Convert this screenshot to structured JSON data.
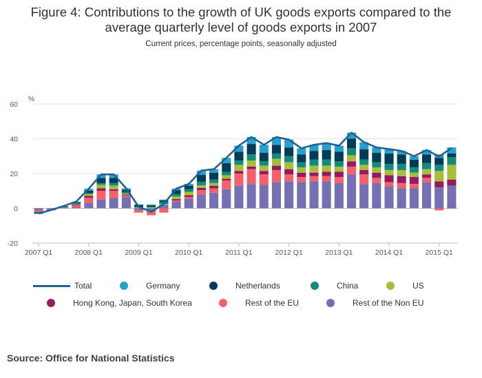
{
  "header": {
    "title_line1": "Figure 4: Contributions to the growth of UK goods exports compared to the",
    "title_line2": "average quarterly level of goods exports in 2007",
    "subtitle": "Current prices, percentage points, seasonally adjusted"
  },
  "source": "Source: Office for National Statistics",
  "chart_data": {
    "type": "bar",
    "stacked": true,
    "y_unit": "%",
    "ylim": [
      -20,
      60
    ],
    "yticks": [
      -20,
      0,
      20,
      40,
      60
    ],
    "x_tick_labels": [
      "2007 Q1",
      "2008 Q1",
      "2009 Q1",
      "2010 Q1",
      "2011 Q1",
      "2012 Q1",
      "2013 Q1",
      "2014 Q1",
      "2015 Q1"
    ],
    "categories": [
      "2007 Q1",
      "2007 Q2",
      "2007 Q3",
      "2007 Q4",
      "2008 Q1",
      "2008 Q2",
      "2008 Q3",
      "2008 Q4",
      "2009 Q1",
      "2009 Q2",
      "2009 Q3",
      "2009 Q4",
      "2010 Q1",
      "2010 Q2",
      "2010 Q3",
      "2010 Q4",
      "2011 Q1",
      "2011 Q2",
      "2011 Q3",
      "2011 Q4",
      "2012 Q1",
      "2012 Q2",
      "2012 Q3",
      "2012 Q4",
      "2013 Q1",
      "2013 Q2",
      "2013 Q3",
      "2013 Q4",
      "2014 Q1",
      "2014 Q2",
      "2014 Q3",
      "2014 Q4",
      "2015 Q1",
      "2015 Q2"
    ],
    "grid": "horizontal",
    "legend_position": "bottom",
    "series": [
      {
        "name": "Rest of the Non EU",
        "color": "#7570b3",
        "values": [
          -1.0,
          -0.5,
          0.3,
          0.6,
          3.0,
          5.0,
          6.0,
          6.5,
          -1.0,
          -2.0,
          2.0,
          4.0,
          5.5,
          8.0,
          9.0,
          11.0,
          13.0,
          14.0,
          13.5,
          15.0,
          15.5,
          15.0,
          15.5,
          15.5,
          14.5,
          19.5,
          14.0,
          14.5,
          12.5,
          11.5,
          11.5,
          15.0,
          12.0,
          13.0
        ]
      },
      {
        "name": "Rest of the EU",
        "color": "#f66068",
        "values": [
          -0.8,
          -0.3,
          0.2,
          1.2,
          3.0,
          5.0,
          4.0,
          1.0,
          -1.5,
          -2.0,
          -2.5,
          0.5,
          1.0,
          2.5,
          2.5,
          5.0,
          7.0,
          8.5,
          6.0,
          7.0,
          4.0,
          3.0,
          3.0,
          3.0,
          3.5,
          4.5,
          5.5,
          3.0,
          2.5,
          3.0,
          2.5,
          2.5,
          -1.2,
          -0.2
        ]
      },
      {
        "name": "Hong Kong, Japan, South Korea",
        "color": "#961a5e",
        "values": [
          -0.2,
          0.0,
          0.1,
          0.4,
          1.2,
          1.5,
          1.0,
          0.5,
          0.0,
          0.0,
          0.0,
          0.8,
          1.0,
          1.2,
          1.5,
          1.0,
          1.5,
          1.5,
          2.0,
          2.5,
          3.0,
          2.5,
          2.0,
          2.5,
          3.0,
          3.0,
          2.5,
          3.0,
          4.0,
          4.0,
          4.0,
          2.0,
          3.5,
          3.5
        ]
      },
      {
        "name": "US",
        "color": "#a8bd3a",
        "values": [
          -0.2,
          0.0,
          0.1,
          0.3,
          1.0,
          2.0,
          2.0,
          0.5,
          0.5,
          0.5,
          0.5,
          1.5,
          2.0,
          1.5,
          1.5,
          2.0,
          3.5,
          3.5,
          3.0,
          4.0,
          4.0,
          3.0,
          4.0,
          3.5,
          3.0,
          3.5,
          3.0,
          3.0,
          3.0,
          3.5,
          2.5,
          3.0,
          6.0,
          8.5
        ]
      },
      {
        "name": "China",
        "color": "#118c7b",
        "values": [
          -0.2,
          0.0,
          0.1,
          0.3,
          0.5,
          1.0,
          1.5,
          1.0,
          0.3,
          0.2,
          1.0,
          1.5,
          1.5,
          2.0,
          2.0,
          2.0,
          2.5,
          3.5,
          2.5,
          3.0,
          3.5,
          3.0,
          3.5,
          3.5,
          3.0,
          4.0,
          3.0,
          3.0,
          3.5,
          3.5,
          3.0,
          3.5,
          3.5,
          4.5
        ]
      },
      {
        "name": "Netherlands",
        "color": "#003c57",
        "values": [
          -0.5,
          -0.2,
          0.3,
          0.6,
          1.5,
          3.0,
          3.0,
          1.0,
          1.0,
          1.0,
          1.0,
          2.0,
          2.0,
          4.0,
          4.0,
          5.0,
          5.0,
          6.0,
          5.0,
          5.0,
          5.0,
          4.5,
          5.0,
          5.5,
          5.5,
          5.5,
          6.0,
          5.5,
          6.0,
          5.5,
          4.5,
          5.0,
          4.0,
          2.0
        ]
      },
      {
        "name": "Germany",
        "color": "#27a0cc",
        "values": [
          -0.4,
          -0.2,
          0.2,
          0.4,
          1.0,
          2.0,
          2.0,
          1.0,
          0.5,
          0.5,
          0.5,
          1.0,
          1.0,
          2.5,
          2.0,
          3.0,
          3.5,
          4.0,
          4.5,
          4.5,
          4.5,
          3.5,
          3.5,
          4.0,
          3.5,
          3.5,
          4.0,
          3.0,
          2.5,
          2.0,
          2.0,
          2.5,
          2.0,
          3.5
        ]
      },
      {
        "name": "Total",
        "color": "#206095",
        "kind": "line",
        "values": [
          -3.0,
          -1.0,
          1.3,
          3.8,
          11.2,
          19.5,
          19.5,
          11.5,
          0.8,
          -2.0,
          2.5,
          11.3,
          14.0,
          21.7,
          22.5,
          29.0,
          36.0,
          41.0,
          36.5,
          41.0,
          39.5,
          34.5,
          36.5,
          37.5,
          36.0,
          43.5,
          38.0,
          35.0,
          34.0,
          33.0,
          30.0,
          33.5,
          29.8,
          34.7
        ]
      }
    ]
  },
  "legend": {
    "row1": [
      "Total",
      "Germany",
      "Netherlands",
      "China",
      "US"
    ],
    "row2": [
      "Hong Kong, Japan, South Korea",
      "Rest of the EU",
      "Rest of the Non EU"
    ]
  }
}
